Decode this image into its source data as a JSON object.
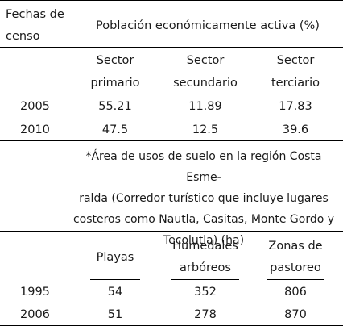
{
  "table1": {
    "col_label": "Fechas de censo",
    "col_label_line1": "Fechas de",
    "col_label_line2": "censo",
    "group_header": "Población económicamente activa (%)",
    "columns": [
      {
        "line1": "Sector",
        "line2": "primario"
      },
      {
        "line1": "Sector",
        "line2": "secundario"
      },
      {
        "line1": "Sector",
        "line2": "terciario"
      }
    ],
    "rows": [
      {
        "year": "2005",
        "values": [
          "55.21",
          "11.89",
          "17.83"
        ]
      },
      {
        "year": "2010",
        "values": [
          "47.5",
          "12.5",
          "39.6"
        ]
      }
    ]
  },
  "note": {
    "line1": "*Área de usos de suelo en la región Costa Esme-",
    "line2": "ralda (Corredor turístico que incluye lugares",
    "line3": "costeros como Nautla, Casitas, Monte Gordo y",
    "line4": "Tecolutla) (ha)"
  },
  "table2": {
    "columns": [
      {
        "line1": "Playas",
        "line2": ""
      },
      {
        "line1": "Humedales",
        "line2": "arbóreos"
      },
      {
        "line1": "Zonas de",
        "line2": "pastoreo"
      }
    ],
    "rows": [
      {
        "year": "1995",
        "values": [
          "54",
          "352",
          "806"
        ]
      },
      {
        "year": "2006",
        "values": [
          "51",
          "278",
          "870"
        ]
      }
    ]
  }
}
